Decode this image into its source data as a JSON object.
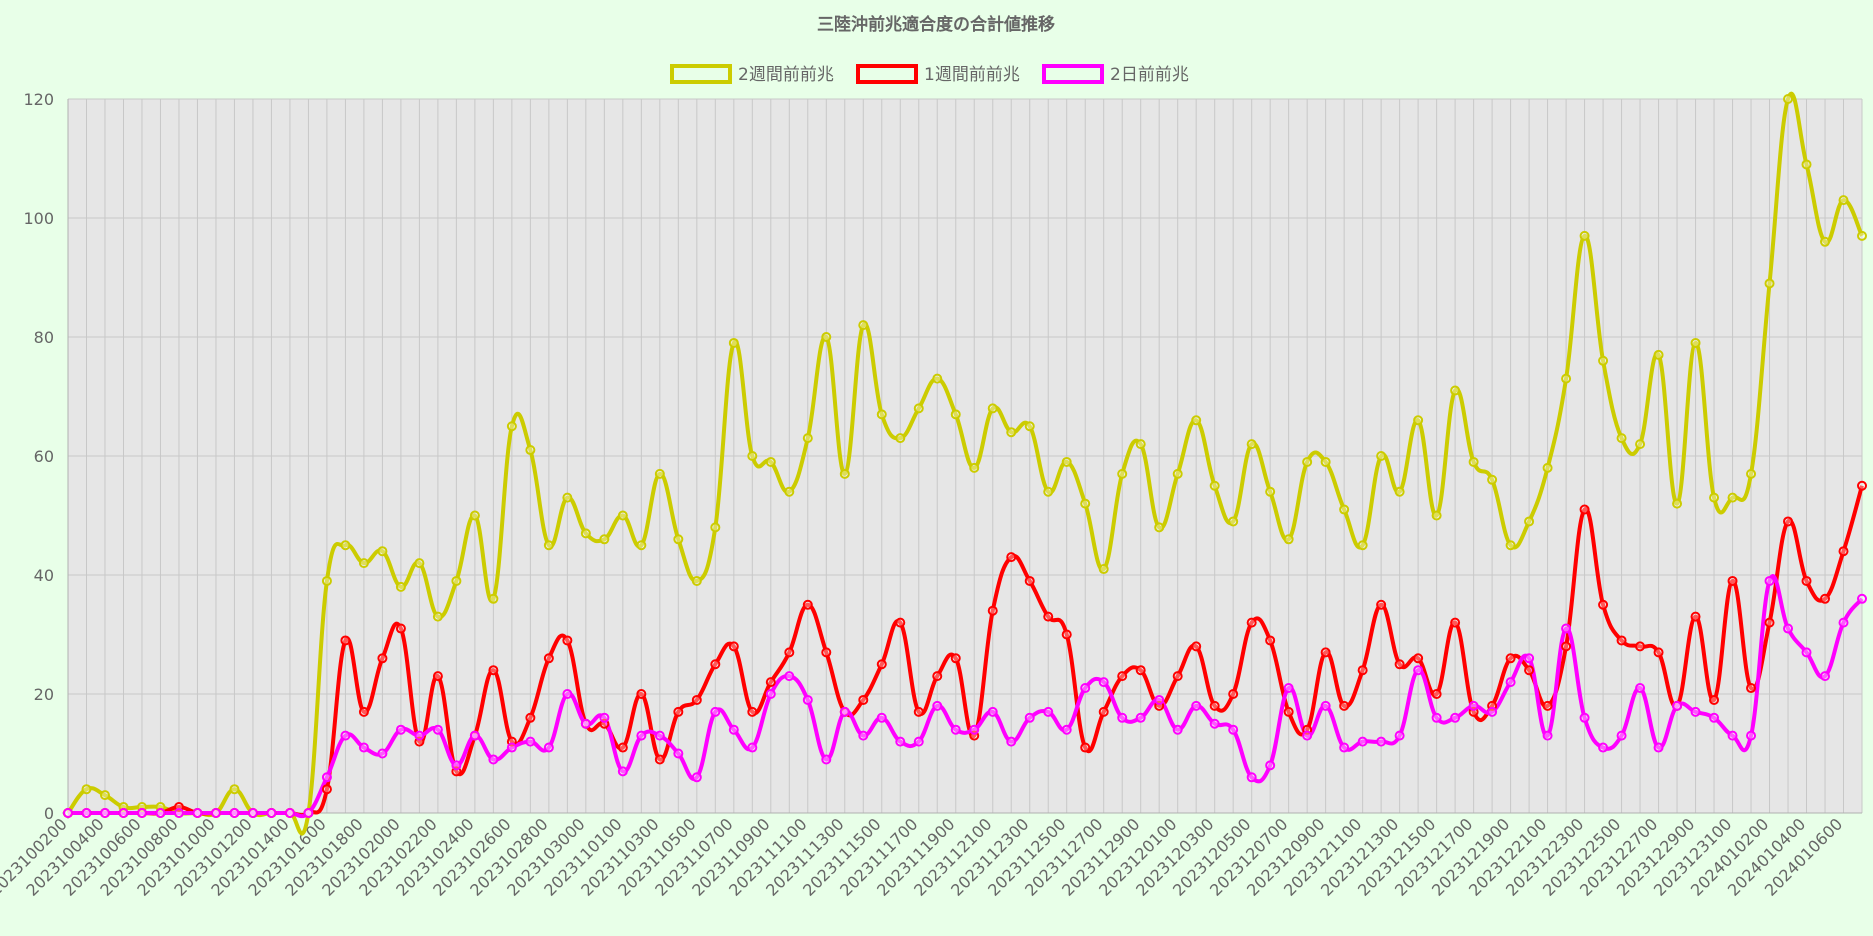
{
  "chart_data": {
    "type": "line",
    "title": "三陸沖前兆適合度の合計値推移",
    "xlabel": "",
    "ylabel": "",
    "ylim": [
      0,
      120
    ],
    "yticks": [
      0,
      20,
      40,
      60,
      80,
      100,
      120
    ],
    "grid": true,
    "legend_position": "top",
    "plot_background": "#e6e6e6",
    "page_background": "#e8ffe8",
    "x": [
      "2023100200",
      "2023100300",
      "2023100400",
      "2023100500",
      "2023100600",
      "2023100700",
      "2023100800",
      "2023100900",
      "2023101000",
      "2023101100",
      "2023101200",
      "2023101300",
      "2023101400",
      "2023101500",
      "2023101600",
      "2023101700",
      "2023101800",
      "2023101900",
      "2023102000",
      "2023102100",
      "2023102200",
      "2023102300",
      "2023102400",
      "2023102500",
      "2023102600",
      "2023102700",
      "2023102800",
      "2023102900",
      "2023103000",
      "2023103100",
      "2023110100",
      "2023110200",
      "2023110300",
      "2023110400",
      "2023110500",
      "2023110600",
      "2023110700",
      "2023110800",
      "2023110900",
      "2023111000",
      "2023111100",
      "2023111200",
      "2023111300",
      "2023111400",
      "2023111500",
      "2023111600",
      "2023111700",
      "2023111800",
      "2023111900",
      "2023112000",
      "2023112100",
      "2023112200",
      "2023112300",
      "2023112400",
      "2023112500",
      "2023112600",
      "2023112700",
      "2023112800",
      "2023112900",
      "2023113000",
      "2023120100",
      "2023120200",
      "2023120300",
      "2023120400",
      "2023120500",
      "2023120600",
      "2023120700",
      "2023120800",
      "2023120900",
      "2023121000",
      "2023121100",
      "2023121200",
      "2023121300",
      "2023121400",
      "2023121500",
      "2023121600",
      "2023121700",
      "2023121800",
      "2023121900",
      "2023122000",
      "2023122100",
      "2023122200",
      "2023122300",
      "2023122400",
      "2023122500",
      "2023122600",
      "2023122700",
      "2023122800",
      "2023122900",
      "2023123000",
      "2023123100",
      "2024010100",
      "2024010200",
      "2024010300",
      "2024010400",
      "2024010500",
      "2024010600",
      "2024010700"
    ],
    "x_tick_labels": [
      "2023100200",
      "2023100400",
      "2023100600",
      "2023100800",
      "2023101000",
      "2023101200",
      "2023101400",
      "2023101600",
      "2023101800",
      "2023102000",
      "2023102200",
      "2023102400",
      "2023102600",
      "2023102800",
      "2023103000",
      "2023110100",
      "2023110300",
      "2023110500",
      "2023110700",
      "2023110900",
      "2023111100",
      "2023111300",
      "2023111500",
      "2023111700",
      "2023111900",
      "2023112100",
      "2023112300",
      "2023112500",
      "2023112700",
      "2023112900",
      "2023120100",
      "2023120300",
      "2023120500",
      "2023120700",
      "2023120900",
      "2023121100",
      "2023121300",
      "2023121500",
      "2023121700",
      "2023121900",
      "2023122100",
      "2023122300",
      "2023122500",
      "2023122700",
      "2023122900",
      "2023123100",
      "2024010200",
      "2024010400",
      "2024010600"
    ],
    "series": [
      {
        "name": "2週間前前兆",
        "color": "#cccc00",
        "values": [
          0,
          4,
          3,
          1,
          1,
          1,
          0,
          0,
          0,
          4,
          0,
          0,
          0,
          0,
          39,
          45,
          42,
          44,
          38,
          42,
          33,
          39,
          50,
          36,
          65,
          61,
          45,
          53,
          47,
          46,
          50,
          45,
          57,
          46,
          39,
          48,
          79,
          60,
          59,
          54,
          63,
          80,
          57,
          82,
          67,
          63,
          68,
          73,
          67,
          58,
          68,
          64,
          65,
          54,
          59,
          52,
          41,
          57,
          62,
          48,
          57,
          66,
          55,
          49,
          62,
          54,
          46,
          59,
          59,
          51,
          45,
          60,
          54,
          66,
          50,
          71,
          59,
          56,
          45,
          49,
          58,
          73,
          97,
          76,
          63,
          62,
          77,
          52,
          79,
          53,
          53,
          57,
          89,
          120,
          109,
          96,
          103,
          97
        ]
      },
      {
        "name": "1週間前前兆",
        "color": "#ff0000",
        "values": [
          0,
          0,
          0,
          0,
          0,
          0,
          1,
          0,
          0,
          0,
          0,
          0,
          0,
          0,
          4,
          29,
          17,
          26,
          31,
          12,
          23,
          7,
          13,
          24,
          12,
          16,
          26,
          29,
          15,
          15,
          11,
          20,
          9,
          17,
          19,
          25,
          28,
          17,
          22,
          27,
          35,
          27,
          17,
          19,
          25,
          32,
          17,
          23,
          26,
          13,
          34,
          43,
          39,
          33,
          30,
          11,
          17,
          23,
          24,
          18,
          23,
          28,
          18,
          20,
          32,
          29,
          17,
          14,
          27,
          18,
          24,
          35,
          25,
          26,
          20,
          32,
          17,
          18,
          26,
          24,
          18,
          28,
          51,
          35,
          29,
          28,
          27,
          18,
          33,
          19,
          39,
          21,
          32,
          49,
          39,
          36,
          44,
          55
        ]
      },
      {
        "name": "2日前前兆",
        "color": "#ff00ff",
        "values": [
          0,
          0,
          0,
          0,
          0,
          0,
          0,
          0,
          0,
          0,
          0,
          0,
          0,
          0,
          6,
          13,
          11,
          10,
          14,
          13,
          14,
          8,
          13,
          9,
          11,
          12,
          11,
          20,
          15,
          16,
          7,
          13,
          13,
          10,
          6,
          17,
          14,
          11,
          20,
          23,
          19,
          9,
          17,
          13,
          16,
          12,
          12,
          18,
          14,
          14,
          17,
          12,
          16,
          17,
          14,
          21,
          22,
          16,
          16,
          19,
          14,
          18,
          15,
          14,
          6,
          8,
          21,
          13,
          18,
          11,
          12,
          12,
          13,
          24,
          16,
          16,
          18,
          17,
          22,
          26,
          13,
          31,
          16,
          11,
          13,
          21,
          11,
          18,
          17,
          16,
          13,
          13,
          39,
          31,
          27,
          23,
          32,
          36
        ]
      }
    ]
  }
}
